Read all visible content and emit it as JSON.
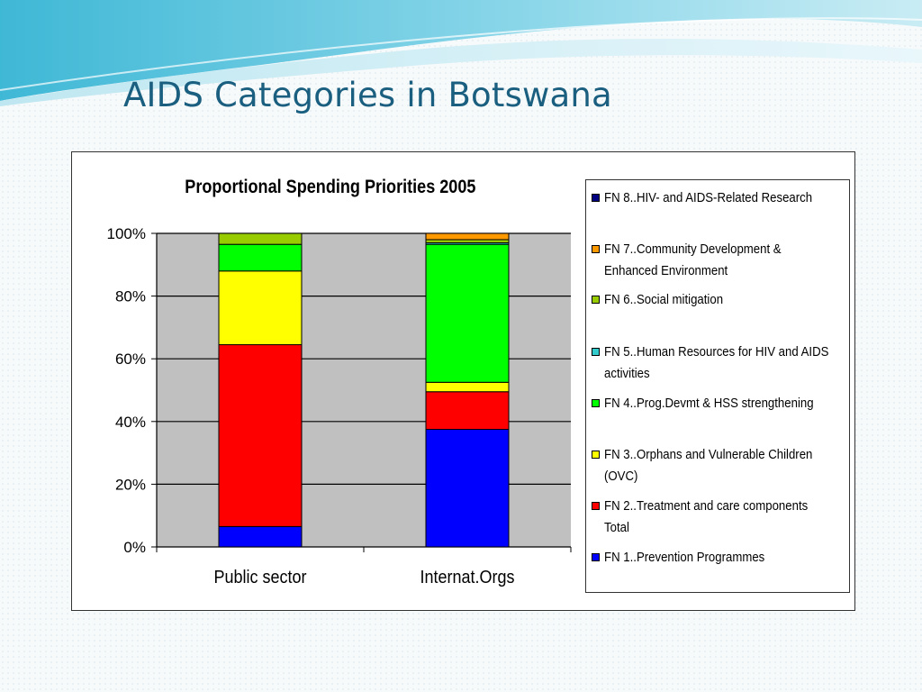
{
  "slide": {
    "title": "AIDS Categories in Botswana"
  },
  "chart_data": {
    "type": "bar",
    "stacked": true,
    "percent_stacked": true,
    "title": "Proportional Spending Priorities 2005",
    "categories": [
      "Public sector",
      "Internat.Orgs"
    ],
    "y_ticks": [
      "0%",
      "20%",
      "40%",
      "60%",
      "80%",
      "100%"
    ],
    "ylim": [
      0,
      100
    ],
    "grid": true,
    "legend_position": "right",
    "series": [
      {
        "name": "FN 1..Prevention Programmes",
        "color": "#0000FF",
        "values": [
          6.5,
          37.5
        ]
      },
      {
        "name": "FN 2..Treatment and care components Total",
        "color": "#FF0000",
        "values": [
          58,
          12
        ]
      },
      {
        "name": "FN 3..Orphans and Vulnerable Children (OVC)",
        "color": "#FFFF00",
        "values": [
          23.5,
          3
        ]
      },
      {
        "name": "FN 4..Prog.Devmt & HSS strengthening",
        "color": "#00FF00",
        "values": [
          8.5,
          44
        ]
      },
      {
        "name": "FN 5..Human Resources for HIV and AIDS activities",
        "color": "#33CCCC",
        "values": [
          0,
          0.5
        ]
      },
      {
        "name": "FN 6..Social mitigation",
        "color": "#99CC00",
        "values": [
          3.5,
          1
        ]
      },
      {
        "name": "FN 7..Community Development & Enhanced Environment",
        "color": "#FF9900",
        "values": [
          0,
          2
        ]
      },
      {
        "name": "FN 8..HIV- and AIDS-Related Research",
        "color": "#000080",
        "values": [
          0,
          0
        ]
      }
    ]
  }
}
